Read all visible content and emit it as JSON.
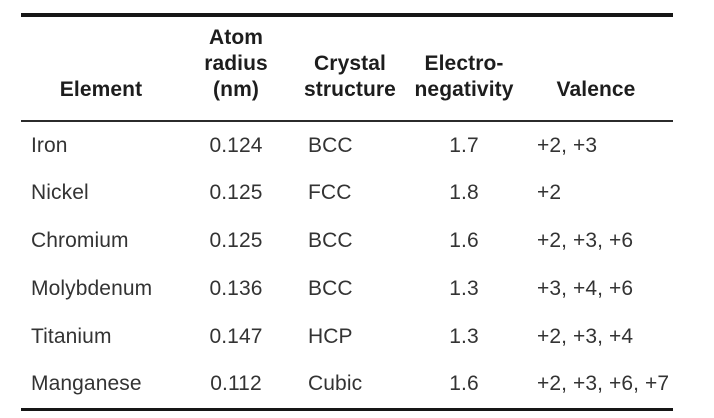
{
  "colors": {
    "background": "#ffffff",
    "rule": "#161616",
    "header_rule": "#2b2b2b",
    "header_text": "#1d1d1d",
    "body_text": "#333333"
  },
  "chart_data": {
    "type": "table",
    "columns": [
      "Element",
      "Atom radius (nm)",
      "Crystal structure",
      "Electro-negativity",
      "Valence"
    ],
    "header_lines": [
      [
        "Element"
      ],
      [
        "Atom",
        "radius (nm)"
      ],
      [
        "Crystal",
        "structure"
      ],
      [
        "Electro-",
        "negativity"
      ],
      [
        "Valence"
      ]
    ],
    "rows": [
      [
        "Iron",
        "0.124",
        "BCC",
        "1.7",
        "+2, +3"
      ],
      [
        "Nickel",
        "0.125",
        "FCC",
        "1.8",
        "+2"
      ],
      [
        "Chromium",
        "0.125",
        "BCC",
        "1.6",
        "+2, +3, +6"
      ],
      [
        "Molybdenum",
        "0.136",
        "BCC",
        "1.3",
        "+3, +4, +6"
      ],
      [
        "Titanium",
        "0.147",
        "HCP",
        "1.3",
        "+2, +3, +4"
      ],
      [
        "Manganese",
        "0.112",
        "Cubic",
        "1.6",
        "+2, +3, +6, +7"
      ]
    ]
  }
}
